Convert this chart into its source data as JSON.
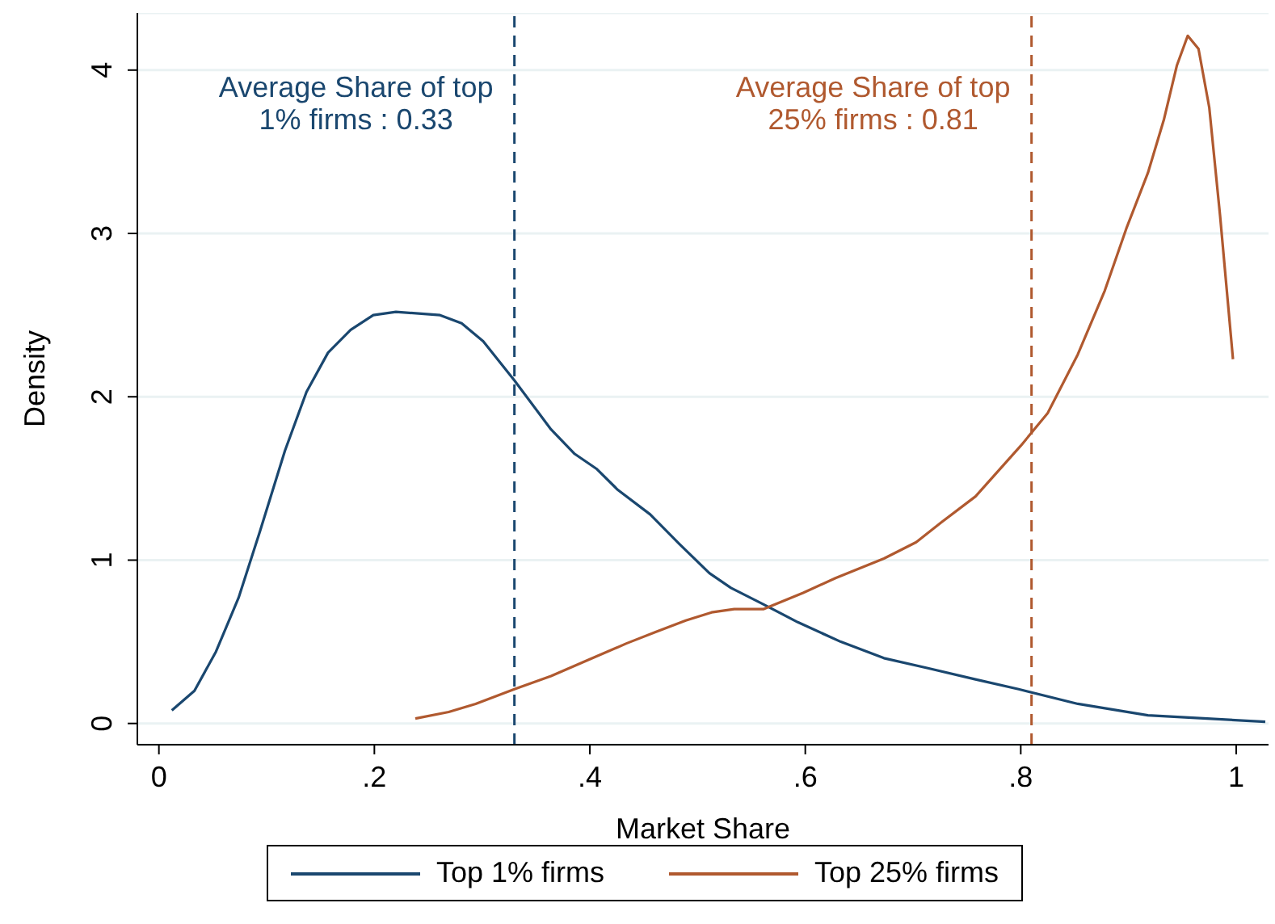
{
  "chart_data": {
    "type": "line",
    "xlabel": "Market Share",
    "ylabel": "Density",
    "xlim": [
      -0.02,
      1.03
    ],
    "xticks": [
      0,
      {
        "value": 0.2,
        "label": ".2"
      },
      {
        "value": 0.4,
        "label": ".4"
      },
      {
        "value": 0.6,
        "label": ".6"
      },
      {
        "value": 0.8,
        "label": ".8"
      },
      1
    ],
    "ylim": [
      -0.13,
      4.35
    ],
    "yticks": [
      0,
      1,
      2,
      3,
      4
    ],
    "grid": "y",
    "legend": "bottom",
    "marker": "none",
    "line_style": "solid",
    "series": [
      {
        "name": "Top 1% firms",
        "color": "#1a476f",
        "x": [
          0.012,
          0.033,
          0.053,
          0.074,
          0.094,
          0.117,
          0.137,
          0.157,
          0.178,
          0.199,
          0.22,
          0.261,
          0.281,
          0.301,
          0.33,
          0.364,
          0.386,
          0.406,
          0.426,
          0.456,
          0.483,
          0.511,
          0.531,
          0.561,
          0.593,
          0.633,
          0.673,
          0.713,
          0.758,
          0.798,
          0.853,
          0.918,
          0.973,
          1.027
        ],
        "values": [
          0.08,
          0.2,
          0.44,
          0.77,
          1.18,
          1.67,
          2.03,
          2.27,
          2.41,
          2.5,
          2.52,
          2.5,
          2.45,
          2.34,
          2.1,
          1.8,
          1.65,
          1.56,
          1.43,
          1.28,
          1.1,
          0.92,
          0.83,
          0.73,
          0.62,
          0.5,
          0.4,
          0.34,
          0.27,
          0.21,
          0.12,
          0.05,
          0.03,
          0.01
        ]
      },
      {
        "name": "Top 25% firms",
        "color": "#b0592f",
        "x": [
          0.238,
          0.269,
          0.294,
          0.33,
          0.364,
          0.399,
          0.434,
          0.461,
          0.489,
          0.513,
          0.534,
          0.561,
          0.598,
          0.628,
          0.673,
          0.703,
          0.726,
          0.758,
          0.8,
          0.825,
          0.853,
          0.878,
          0.898,
          0.918,
          0.933,
          0.945,
          0.955,
          0.965,
          0.975,
          0.985,
          0.997
        ],
        "values": [
          0.03,
          0.07,
          0.12,
          0.21,
          0.29,
          0.39,
          0.49,
          0.56,
          0.63,
          0.68,
          0.7,
          0.7,
          0.8,
          0.89,
          1.01,
          1.11,
          1.23,
          1.39,
          1.7,
          1.9,
          2.26,
          2.65,
          3.03,
          3.37,
          3.7,
          4.03,
          4.21,
          4.13,
          3.77,
          3.11,
          2.23
        ]
      }
    ],
    "ref_lines": [
      {
        "axis": "x",
        "value": 0.33,
        "label": "Average Share of top\n1% firms : 0.33",
        "color": "#1a476f",
        "line_style": "dashed"
      },
      {
        "axis": "x",
        "value": 0.81,
        "label": "Average Share of top\n25% firms : 0.81",
        "color": "#b0592f",
        "line_style": "dashed"
      }
    ]
  }
}
